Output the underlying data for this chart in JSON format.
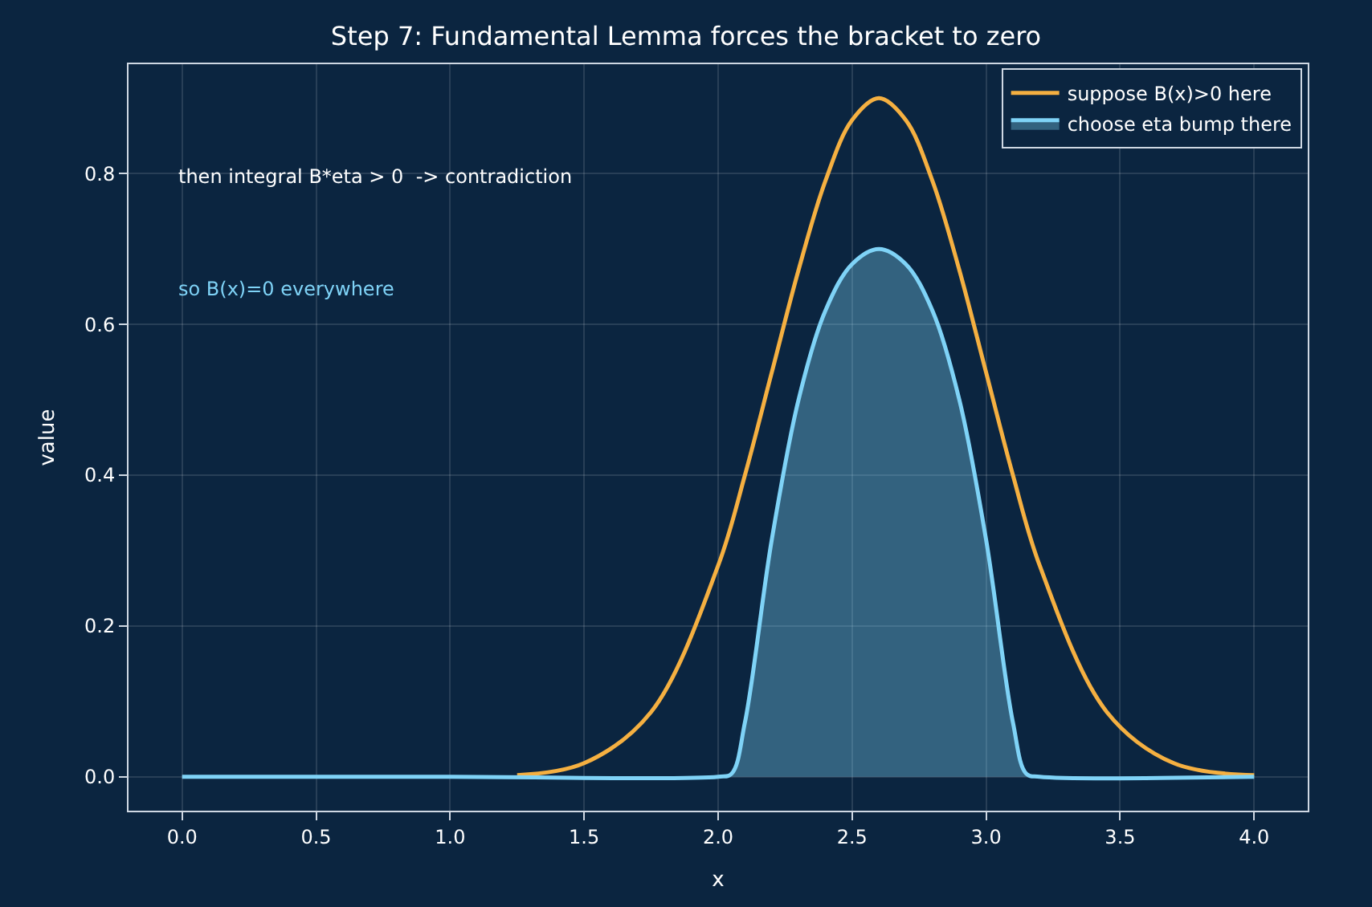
{
  "chart_data": {
    "type": "line",
    "title": "Step 7: Fundamental Lemma forces the bracket to zero",
    "xlabel": "x",
    "ylabel": "value",
    "series": [
      {
        "name": "suppose B(x)>0 here",
        "color": "#f5b041",
        "x": [
          1.25,
          1.5,
          1.75,
          2.0,
          2.1,
          2.2,
          2.3,
          2.4,
          2.5,
          2.6,
          2.7,
          2.8,
          2.9,
          3.0,
          3.1,
          3.2,
          3.45,
          3.7,
          4.0
        ],
        "values": [
          0.002,
          0.018,
          0.086,
          0.28,
          0.4,
          0.536,
          0.672,
          0.79,
          0.871,
          0.9,
          0.871,
          0.79,
          0.672,
          0.536,
          0.4,
          0.28,
          0.086,
          0.018,
          0.002
        ]
      },
      {
        "name": "choose eta bump there",
        "type": "area",
        "color": "#7fd3f7",
        "x": [
          0,
          1.0,
          2.0,
          2.05,
          2.1,
          2.2,
          2.3,
          2.4,
          2.5,
          2.6,
          2.7,
          2.8,
          2.9,
          3.0,
          3.1,
          3.15,
          3.2,
          4.0
        ],
        "values": [
          0,
          0,
          0,
          0.004,
          0.072,
          0.314,
          0.5,
          0.618,
          0.68,
          0.7,
          0.68,
          0.618,
          0.5,
          0.314,
          0.072,
          0.004,
          0,
          0
        ]
      }
    ],
    "annotations": [
      "then integral B*eta > 0  -> contradiction",
      "so B(x)=0 everywhere"
    ],
    "xlim": [
      -0.2,
      4.2
    ],
    "ylim": [
      -0.045,
      0.945
    ],
    "xticks": [
      {
        "value": 0,
        "label": "0.0"
      },
      0.5,
      {
        "value": 1,
        "label": "1.0"
      },
      1.5,
      {
        "value": 2,
        "label": "2.0"
      },
      2.5,
      {
        "value": 3,
        "label": "3.0"
      },
      3.5,
      {
        "value": 4,
        "label": "4.0"
      }
    ],
    "yticks": [
      {
        "value": 0,
        "label": "0.0"
      },
      0.2,
      0.4,
      0.6,
      0.8
    ],
    "grid": true,
    "legend": "top right",
    "line_style": "solid",
    "marker": "none"
  }
}
